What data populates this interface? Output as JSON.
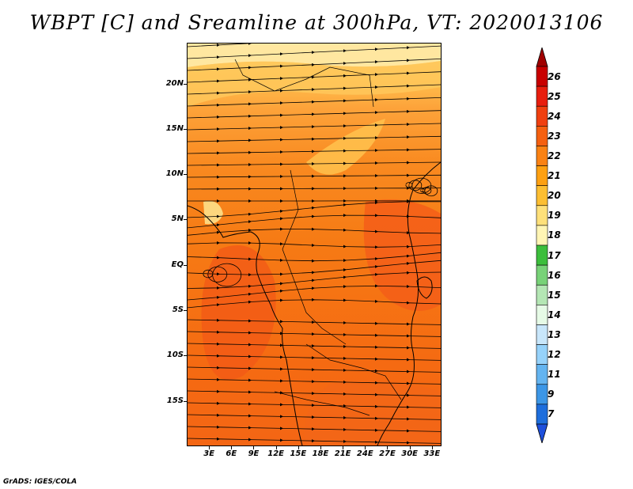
{
  "title": "WBPT [C] and Sreamline at 300hPa, VT: 2020013106",
  "credit": "GrADS: IGES/COLA",
  "map": {
    "variable": "WBPT",
    "units": "C",
    "level": "300hPa",
    "valid_time": "2020013106",
    "lat_labels": [
      "20N",
      "15N",
      "10N",
      "5N",
      "EQ",
      "5S",
      "10S",
      "15S"
    ],
    "lat_values": [
      20,
      15,
      10,
      5,
      0,
      -5,
      -10,
      -15
    ],
    "lon_labels": [
      "3E",
      "6E",
      "9E",
      "12E",
      "15E",
      "18E",
      "21E",
      "24E",
      "27E",
      "30E",
      "33E"
    ],
    "lon_values": [
      3,
      6,
      9,
      12,
      15,
      18,
      21,
      24,
      27,
      30,
      33
    ],
    "lat_range": [
      -20,
      24.5
    ],
    "lon_range": [
      0,
      34.3
    ],
    "field_range": "22-24",
    "north_colors": [
      "#ffe08a",
      "#ffc850",
      "#fdb040"
    ]
  },
  "colorbar": {
    "labels": [
      "26",
      "25",
      "24",
      "23",
      "22",
      "21",
      "20",
      "19",
      "18",
      "17",
      "16",
      "15",
      "14",
      "13",
      "12",
      "11",
      "9",
      "7"
    ],
    "colors": [
      "#c80000",
      "#e81e0e",
      "#f04010",
      "#f56010",
      "#fa8214",
      "#fda012",
      "#fcbe32",
      "#fee07a",
      "#fff5b4",
      "#3cbe3c",
      "#78d278",
      "#b4e6b4",
      "#e6fae6",
      "#c8e6fa",
      "#96d2fa",
      "#64b4f0",
      "#3c96e6",
      "#1e6edc"
    ],
    "top_color": "#a00000",
    "bottom_color": "#1e50dc"
  }
}
